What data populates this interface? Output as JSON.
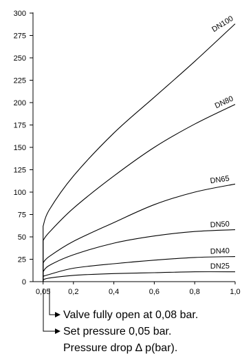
{
  "chart_data": {
    "type": "line",
    "title": "",
    "xlabel": "",
    "ylabel": "",
    "xlim": [
      0,
      1.0
    ],
    "ylim": [
      0,
      300
    ],
    "grid": false,
    "x_ticks": [
      0.05,
      0.2,
      0.4,
      0.6,
      0.8,
      1.0
    ],
    "x_tick_labels": [
      "0,05",
      "0,2",
      "0,4",
      "0,6",
      "0,8",
      "1,0"
    ],
    "y_ticks": [
      0,
      25,
      50,
      75,
      100,
      125,
      150,
      175,
      200,
      225,
      250,
      275,
      300
    ],
    "y_tick_labels": [
      "0",
      "25",
      "50",
      "75",
      "100",
      "125",
      "150",
      "175",
      "200",
      "225",
      "250",
      "275",
      "300"
    ],
    "series": [
      {
        "name": "DN100",
        "x": [
          0.05,
          0.05,
          0.08,
          0.2,
          0.4,
          0.6,
          0.8,
          1.0
        ],
        "y": [
          0,
          62,
          80,
          118,
          166,
          206,
          246,
          288
        ]
      },
      {
        "name": "DN80",
        "x": [
          0.05,
          0.05,
          0.08,
          0.2,
          0.4,
          0.6,
          0.8,
          1.0
        ],
        "y": [
          0,
          46,
          55,
          82,
          118,
          150,
          176,
          198
        ]
      },
      {
        "name": "DN65",
        "x": [
          0.05,
          0.05,
          0.08,
          0.2,
          0.4,
          0.6,
          0.8,
          1.0
        ],
        "y": [
          0,
          21,
          28,
          45,
          66,
          86,
          100,
          109
        ]
      },
      {
        "name": "DN50",
        "x": [
          0.05,
          0.05,
          0.08,
          0.2,
          0.4,
          0.6,
          0.8,
          1.0
        ],
        "y": [
          0,
          11,
          18,
          30,
          43,
          51,
          56,
          58
        ]
      },
      {
        "name": "DN40",
        "x": [
          0.05,
          0.05,
          0.08,
          0.2,
          0.4,
          0.6,
          0.8,
          1.0
        ],
        "y": [
          0,
          6,
          8,
          15,
          20,
          24,
          27,
          28
        ]
      },
      {
        "name": "DN25",
        "x": [
          0.05,
          0.05,
          0.08,
          0.2,
          0.4,
          0.6,
          0.8,
          1.0
        ],
        "y": [
          0,
          2,
          4,
          7,
          9,
          10,
          11,
          11
        ]
      }
    ],
    "annotations": [
      "Valve fully open at 0,08 bar.",
      "Set pressure 0,05 bar.",
      "Pressure drop ∆ p(bar)."
    ]
  }
}
